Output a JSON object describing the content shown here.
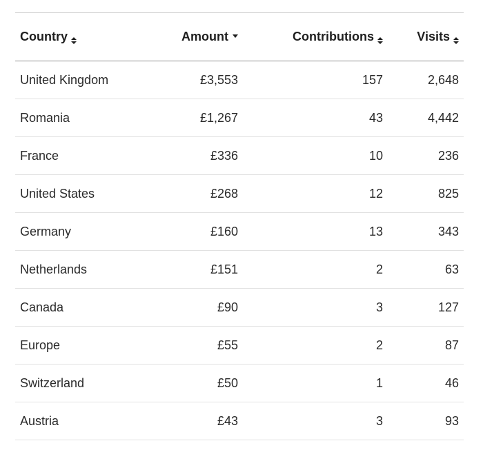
{
  "table": {
    "headers": {
      "country": "Country",
      "amount": "Amount",
      "contributions": "Contributions",
      "visits": "Visits"
    },
    "sort": {
      "active_column": "amount",
      "direction": "descending"
    },
    "rows": [
      {
        "country": "United Kingdom",
        "amount": "£3,553",
        "contributions": "157",
        "visits": "2,648"
      },
      {
        "country": "Romania",
        "amount": "£1,267",
        "contributions": "43",
        "visits": "4,442"
      },
      {
        "country": "France",
        "amount": "£336",
        "contributions": "10",
        "visits": "236"
      },
      {
        "country": "United States",
        "amount": "£268",
        "contributions": "12",
        "visits": "825"
      },
      {
        "country": "Germany",
        "amount": "£160",
        "contributions": "13",
        "visits": "343"
      },
      {
        "country": "Netherlands",
        "amount": "£151",
        "contributions": "2",
        "visits": "63"
      },
      {
        "country": "Canada",
        "amount": "£90",
        "contributions": "3",
        "visits": "127"
      },
      {
        "country": "Europe",
        "amount": "£55",
        "contributions": "2",
        "visits": "87"
      },
      {
        "country": "Switzerland",
        "amount": "£50",
        "contributions": "1",
        "visits": "46"
      },
      {
        "country": "Austria",
        "amount": "£43",
        "contributions": "3",
        "visits": "93"
      }
    ]
  },
  "icons": {
    "sort_both": "sort-up-down-icon",
    "sort_desc": "sort-descending-icon"
  }
}
